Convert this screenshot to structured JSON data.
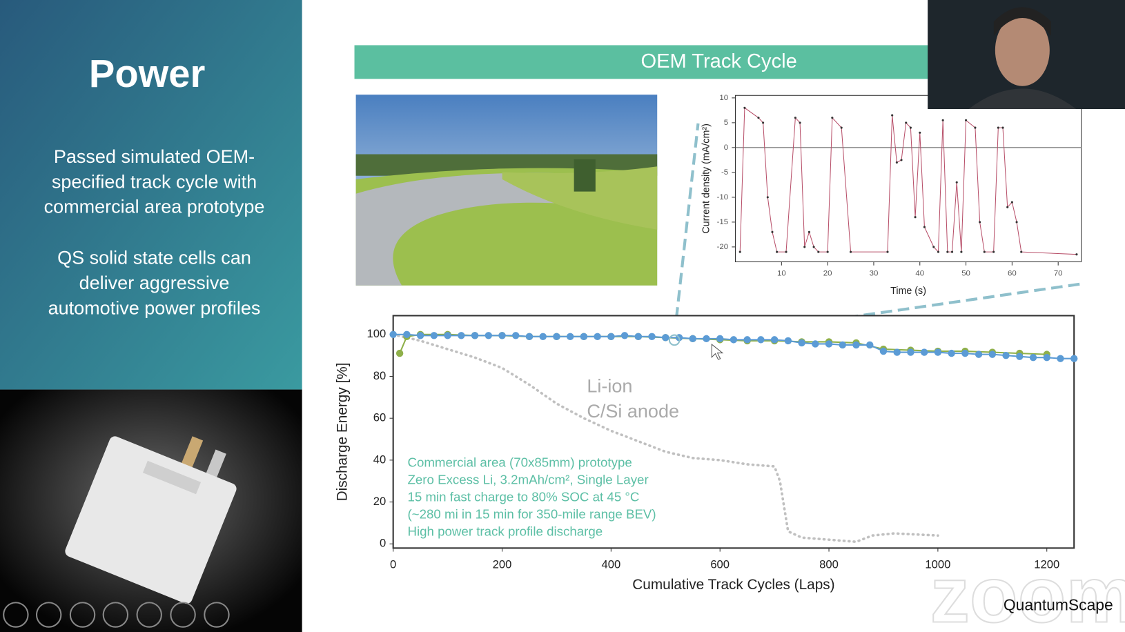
{
  "slide": {
    "title": "Power",
    "points": [
      [
        "Passed simulated OEM-",
        "specified track cycle with",
        "commercial area prototype"
      ],
      [
        "QS solid state cells can",
        "deliver aggressive",
        "automotive power profiles"
      ]
    ]
  },
  "header": "OEM Track Cycle",
  "logo": "QuantumScape",
  "watermark": "zoom",
  "chart_data": [
    {
      "type": "line",
      "xlabel": "Time (s)",
      "ylabel": "Current density (mA/cm²)",
      "xlim": [
        0,
        75
      ],
      "ylim": [
        -23,
        10.5
      ],
      "xticks": [
        10,
        20,
        30,
        40,
        50,
        60,
        70
      ],
      "yticks": [
        10,
        5,
        0,
        -5,
        -10,
        -15,
        -20
      ],
      "zero_line": true,
      "series": [
        {
          "color": "#b8506a",
          "marker": true,
          "x": [
            1,
            2,
            5,
            6,
            7,
            8,
            9,
            11,
            13,
            14,
            15,
            16,
            17,
            18,
            20,
            21,
            23,
            25,
            33,
            34,
            35,
            36,
            37,
            38,
            39,
            40,
            41,
            43,
            44,
            45,
            46,
            47,
            48,
            49,
            50,
            52,
            53,
            54,
            56,
            57,
            58,
            59,
            60,
            61,
            62,
            74
          ],
          "values": [
            -21,
            8,
            6,
            5,
            -10,
            -17,
            -21,
            -21,
            6,
            5,
            -20,
            -17,
            -20,
            -21,
            -21,
            6,
            4,
            -21,
            -21,
            6.5,
            -3,
            -2.5,
            5,
            4,
            -14,
            3,
            -16,
            -20,
            -21,
            5.5,
            -21,
            -21,
            -7,
            -21,
            5.5,
            4,
            -15,
            -21,
            -21,
            4,
            4,
            -12,
            -11,
            -15,
            -21,
            -21.5
          ]
        }
      ]
    },
    {
      "type": "line",
      "xlabel": "Cumulative Track Cycles (Laps)",
      "ylabel": "Discharge Energy [%]",
      "xlim": [
        0,
        1250
      ],
      "ylim": [
        -2,
        109
      ],
      "xticks": [
        0,
        200,
        400,
        600,
        800,
        1000,
        1200
      ],
      "yticks": [
        0,
        20,
        40,
        60,
        80,
        100
      ],
      "annotations": [
        {
          "lines": [
            "Li-ion",
            "C/Si anode"
          ]
        },
        {
          "lines": [
            "Commercial area (70x85mm) prototype",
            "Zero Excess Li, 3.2mAh/cm², Single Layer",
            "15 min fast charge to 80% SOC at 45 °C",
            "(~280 mi in 15 min for 350-mile range BEV)",
            "High power track profile discharge"
          ]
        }
      ],
      "series": [
        {
          "color": "#c0c0c0",
          "dash": true,
          "x": [
            0,
            50,
            100,
            150,
            200,
            250,
            300,
            350,
            400,
            450,
            500,
            550,
            600,
            650,
            700,
            710,
            725,
            750,
            800,
            850,
            880,
            920,
            1000
          ],
          "values": [
            100,
            97,
            93,
            89,
            84,
            76,
            67,
            60,
            54,
            49,
            44,
            41,
            40,
            38,
            37,
            30,
            6,
            3,
            2,
            1,
            4,
            5,
            4
          ]
        },
        {
          "color": "#8fb04a",
          "marker": true,
          "x": [
            12,
            25,
            50,
            100,
            150,
            200,
            250,
            300,
            350,
            400,
            450,
            500,
            550,
            600,
            650,
            700,
            750,
            800,
            850,
            900,
            950,
            1000,
            1050,
            1100,
            1150,
            1200
          ],
          "values": [
            91,
            99,
            100,
            100,
            99.5,
            99.5,
            99,
            99,
            99,
            99,
            99,
            98.5,
            98,
            97.5,
            97,
            97,
            96.5,
            96.5,
            96,
            93,
            92.5,
            92,
            92,
            91.5,
            91,
            90.5
          ]
        },
        {
          "color": "#5b9bd5",
          "marker": true,
          "x": [
            0,
            25,
            50,
            75,
            100,
            125,
            150,
            175,
            200,
            225,
            250,
            275,
            300,
            325,
            350,
            375,
            400,
            425,
            450,
            475,
            500,
            525,
            550,
            575,
            600,
            625,
            650,
            675,
            700,
            725,
            750,
            775,
            800,
            825,
            850,
            875,
            900,
            925,
            950,
            975,
            1000,
            1025,
            1050,
            1075,
            1100,
            1125,
            1150,
            1175,
            1200,
            1225,
            1250
          ],
          "values": [
            100,
            100,
            99.5,
            99.5,
            99.5,
            99.5,
            99.5,
            99.5,
            99.5,
            99.5,
            99,
            99,
            99,
            99,
            99,
            99,
            99,
            99.5,
            99,
            99,
            98.5,
            98.5,
            98,
            98,
            98,
            97.5,
            97.5,
            97.5,
            97.5,
            97,
            96,
            95.5,
            95.5,
            95,
            95,
            95,
            92,
            91.5,
            91.5,
            91.5,
            91.5,
            91,
            91,
            90.5,
            90.5,
            90,
            89.5,
            89,
            89,
            88.5,
            88.5
          ]
        }
      ]
    }
  ]
}
